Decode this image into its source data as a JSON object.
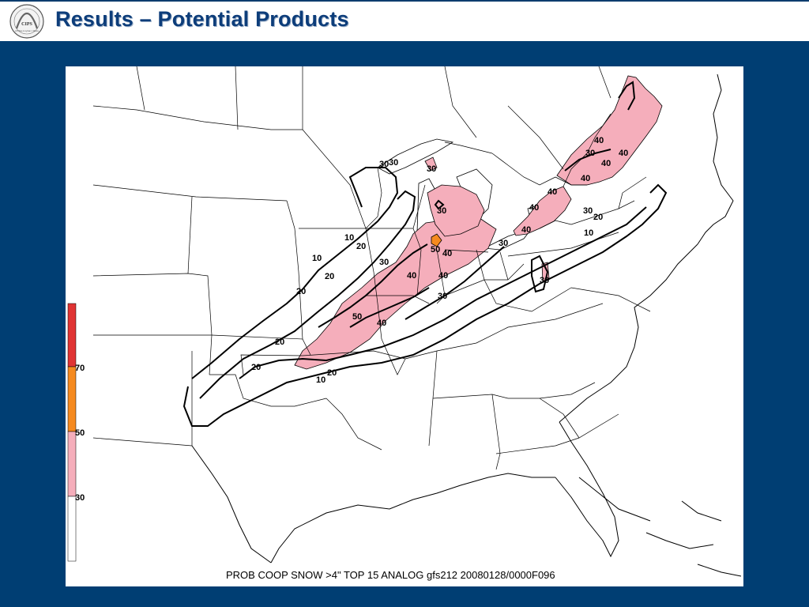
{
  "header": {
    "title": "Results – Potential Products"
  },
  "logo": {
    "text": "CIPS",
    "caption": "A Tribute to Lyman J. Moore"
  },
  "map": {
    "caption": "PROB COOP SNOW >4\" TOP 15 ANALOG gfs212 20080128/0000F096",
    "contour_labels": [
      {
        "id": "c1",
        "text": "30"
      },
      {
        "id": "c2",
        "text": "30"
      },
      {
        "id": "c3",
        "text": "30"
      },
      {
        "id": "c4",
        "text": "30"
      },
      {
        "id": "c5",
        "text": "40"
      },
      {
        "id": "c6",
        "text": "30"
      },
      {
        "id": "c7",
        "text": "40"
      },
      {
        "id": "c8",
        "text": "40"
      },
      {
        "id": "c9",
        "text": "40"
      },
      {
        "id": "c10",
        "text": "40"
      },
      {
        "id": "c11",
        "text": "40"
      },
      {
        "id": "c12",
        "text": "30"
      },
      {
        "id": "c13",
        "text": "20"
      },
      {
        "id": "c14",
        "text": "10"
      },
      {
        "id": "c15",
        "text": "40"
      },
      {
        "id": "c16",
        "text": "10"
      },
      {
        "id": "c17",
        "text": "20"
      },
      {
        "id": "c18",
        "text": "30"
      },
      {
        "id": "c19",
        "text": "10"
      },
      {
        "id": "c20",
        "text": "50"
      },
      {
        "id": "c21",
        "text": "40"
      },
      {
        "id": "c22",
        "text": "30"
      },
      {
        "id": "c23",
        "text": "20"
      },
      {
        "id": "c24",
        "text": "40"
      },
      {
        "id": "c25",
        "text": "40"
      },
      {
        "id": "c26",
        "text": "30"
      },
      {
        "id": "c27",
        "text": "30"
      },
      {
        "id": "c28",
        "text": "20"
      },
      {
        "id": "c29",
        "text": "50"
      },
      {
        "id": "c30",
        "text": "40"
      },
      {
        "id": "c31",
        "text": "20"
      },
      {
        "id": "c32",
        "text": "20"
      },
      {
        "id": "c33",
        "text": "20"
      },
      {
        "id": "c34",
        "text": "10"
      }
    ],
    "legend": {
      "bins": [
        {
          "label": "70",
          "color": "#e03434"
        },
        {
          "label": "50",
          "color": "#f58a1f"
        },
        {
          "label": "30",
          "color": "#f5aebb"
        },
        {
          "label": "",
          "color": "#ffffff"
        }
      ]
    },
    "colors": {
      "pink": "#f5aebb",
      "orange": "#f58a1f",
      "red": "#e03434",
      "background": "#003e73",
      "title": "#0d3d7a"
    }
  }
}
